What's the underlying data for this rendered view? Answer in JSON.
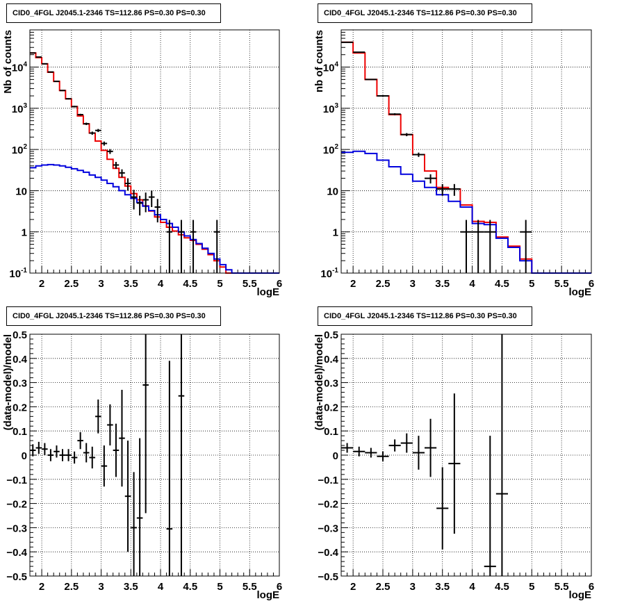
{
  "window": {
    "title": "CID0_4FGL J2045.1-2346 TS=112.86 PS=0.30 PS=0.30"
  },
  "chart_data": [
    {
      "type": "line",
      "title": "CID0_4FGL J2045.1-2346 TS=112.86 PS=0.30 PS=0.30",
      "xlabel": "logE",
      "ylabel": "Nb of counts",
      "xlim": [
        1.8,
        6.0
      ],
      "ylim": [
        0.1,
        80000
      ],
      "yscale": "log",
      "grid": true,
      "xticks": [
        2,
        2.5,
        3,
        3.5,
        4,
        4.5,
        5,
        5.5,
        6
      ],
      "xtick_labels": [
        "2",
        "2.5",
        "3",
        "3.5",
        "4",
        "4.5",
        "5",
        "5.5",
        "6"
      ],
      "yticks": [
        0.1,
        1,
        10,
        100,
        1000,
        10000
      ],
      "ytick_labels": [
        "10^-1",
        "1",
        "10",
        "10^2",
        "10^3",
        "10^4"
      ],
      "bin_edges": [
        1.8,
        1.9,
        2.0,
        2.1,
        2.2,
        2.3,
        2.4,
        2.5,
        2.6,
        2.7,
        2.8,
        2.9,
        3.0,
        3.1,
        3.2,
        3.3,
        3.4,
        3.5,
        3.6,
        3.7,
        3.8,
        3.9,
        4.0,
        4.1,
        4.2,
        4.3,
        4.4,
        4.5,
        4.6,
        4.7,
        4.8,
        4.9,
        5.0,
        5.1,
        5.2,
        5.3,
        5.4,
        5.5,
        5.6,
        5.7,
        5.8,
        5.9,
        6.0
      ],
      "series": [
        {
          "color": "#ee0000",
          "step": true,
          "values": [
            22000,
            17000,
            12000,
            7500,
            4500,
            2700,
            1700,
            1100,
            650,
            420,
            250,
            160,
            95,
            58,
            35,
            21,
            13,
            8.5,
            6.0,
            4.3,
            3.2,
            2.3,
            1.7,
            1.3,
            1.05,
            0.85,
            0.72,
            0.62,
            0.5,
            0.38,
            0.28,
            0.2,
            0.14,
            0.1,
            0.1,
            0.1,
            0.1,
            0.1,
            0.1,
            0.1,
            0.1,
            0.1
          ]
        },
        {
          "color": "#0000dd",
          "step": true,
          "values": [
            36,
            40,
            42,
            43,
            42,
            40,
            37,
            34,
            31,
            28,
            24,
            21,
            18,
            15,
            12.5,
            10,
            8,
            6.5,
            5.2,
            4.2,
            3.3,
            2.6,
            2.0,
            1.6,
            1.3,
            1.0,
            0.8,
            0.65,
            0.52,
            0.4,
            0.3,
            0.22,
            0.16,
            0.12,
            0.1,
            0.1,
            0.1,
            0.1,
            0.1,
            0.1,
            0.1,
            0.1
          ]
        }
      ],
      "points": [
        {
          "x": 1.85,
          "y": 22000,
          "yerr": 300,
          "xerr": 0.05
        },
        {
          "x": 1.95,
          "y": 17500,
          "yerr": 250,
          "xerr": 0.05
        },
        {
          "x": 2.05,
          "y": 12000,
          "yerr": 200,
          "xerr": 0.05
        },
        {
          "x": 2.15,
          "y": 7600,
          "yerr": 150,
          "xerr": 0.05
        },
        {
          "x": 2.25,
          "y": 4500,
          "yerr": 110,
          "xerr": 0.05
        },
        {
          "x": 2.35,
          "y": 2700,
          "yerr": 80,
          "xerr": 0.05
        },
        {
          "x": 2.45,
          "y": 1700,
          "yerr": 60,
          "xerr": 0.05
        },
        {
          "x": 2.55,
          "y": 1100,
          "yerr": 45,
          "xerr": 0.05
        },
        {
          "x": 2.65,
          "y": 700,
          "yerr": 35,
          "xerr": 0.05
        },
        {
          "x": 2.75,
          "y": 420,
          "yerr": 28,
          "xerr": 0.05
        },
        {
          "x": 2.85,
          "y": 250,
          "yerr": 22,
          "xerr": 0.05
        },
        {
          "x": 2.95,
          "y": 290,
          "yerr": 25,
          "xerr": 0.05
        },
        {
          "x": 3.05,
          "y": 140,
          "yerr": 16,
          "xerr": 0.05
        },
        {
          "x": 3.15,
          "y": 90,
          "yerr": 12,
          "xerr": 0.05
        },
        {
          "x": 3.25,
          "y": 42,
          "yerr": 8,
          "xerr": 0.05
        },
        {
          "x": 3.35,
          "y": 27,
          "yerr": 6,
          "xerr": 0.05
        },
        {
          "x": 3.45,
          "y": 15,
          "yerr": 5,
          "xerr": 0.05
        },
        {
          "x": 3.55,
          "y": 7,
          "yerr": 3.5,
          "xerr": 0.05
        },
        {
          "x": 3.65,
          "y": 5,
          "yerr": 2.5,
          "xerr": 0.05
        },
        {
          "x": 3.75,
          "y": 6,
          "yerr": 3,
          "xerr": 0.05
        },
        {
          "x": 3.85,
          "y": 7,
          "yerr": 3,
          "xerr": 0.05
        },
        {
          "x": 3.95,
          "y": 4,
          "yerr": 2.3,
          "xerr": 0.05
        },
        {
          "x": 4.15,
          "y": 1,
          "yerr": 0.95,
          "xerr": 0.05
        },
        {
          "x": 4.35,
          "y": 1,
          "yerr": 0.95,
          "xerr": 0.05
        },
        {
          "x": 4.55,
          "y": 1,
          "yerr": 0.95,
          "xerr": 0.05
        },
        {
          "x": 4.95,
          "y": 1,
          "yerr": 0.95,
          "xerr": 0.05
        }
      ]
    },
    {
      "type": "line",
      "title": "CID0_4FGL J2045.1-2346 TS=112.86 PS=0.30 PS=0.30",
      "xlabel": "logE",
      "ylabel": "nb of counts",
      "xlim": [
        1.8,
        6.0
      ],
      "ylim": [
        0.1,
        80000
      ],
      "yscale": "log",
      "grid": true,
      "xticks": [
        2,
        2.5,
        3,
        3.5,
        4,
        4.5,
        5,
        5.5,
        6
      ],
      "xtick_labels": [
        "2",
        "2.5",
        "3",
        "3.5",
        "4",
        "4.5",
        "5",
        "5.5",
        "6"
      ],
      "yticks": [
        0.1,
        1,
        10,
        100,
        1000,
        10000
      ],
      "ytick_labels": [
        "10^-1",
        "1",
        "10",
        "10^2",
        "10^3",
        "10^4"
      ],
      "bin_edges": [
        1.8,
        2.0,
        2.2,
        2.4,
        2.6,
        2.8,
        3.0,
        3.2,
        3.4,
        3.6,
        3.8,
        4.0,
        4.2,
        4.4,
        4.6,
        4.8,
        5.0,
        5.2,
        5.4,
        5.6,
        5.8,
        6.0
      ],
      "series": [
        {
          "color": "#ee0000",
          "step": true,
          "values": [
            40000,
            22000,
            5000,
            2000,
            700,
            230,
            75,
            30,
            12,
            11,
            4.5,
            1.8,
            1.7,
            0.75,
            0.45,
            0.22,
            0.1,
            0.1,
            0.1,
            0.1,
            0.1
          ]
        },
        {
          "color": "#0000dd",
          "step": true,
          "values": [
            85,
            90,
            80,
            55,
            38,
            25,
            17,
            12,
            8,
            5.5,
            4,
            1.6,
            1.5,
            0.7,
            0.42,
            0.2,
            0.1,
            0.1,
            0.1,
            0.1,
            0.1
          ]
        }
      ],
      "points": [
        {
          "x": 1.9,
          "y": 40000,
          "yerr": 500,
          "xerr": 0.1
        },
        {
          "x": 2.1,
          "y": 23000,
          "yerr": 300,
          "xerr": 0.1
        },
        {
          "x": 2.3,
          "y": 5000,
          "yerr": 120,
          "xerr": 0.1
        },
        {
          "x": 2.5,
          "y": 2000,
          "yerr": 70,
          "xerr": 0.1
        },
        {
          "x": 2.7,
          "y": 720,
          "yerr": 40,
          "xerr": 0.1
        },
        {
          "x": 2.9,
          "y": 230,
          "yerr": 20,
          "xerr": 0.1
        },
        {
          "x": 3.1,
          "y": 75,
          "yerr": 9,
          "xerr": 0.1
        },
        {
          "x": 3.3,
          "y": 20,
          "yerr": 5,
          "xerr": 0.1
        },
        {
          "x": 3.5,
          "y": 11,
          "yerr": 3.5,
          "xerr": 0.1
        },
        {
          "x": 3.7,
          "y": 11,
          "yerr": 3.5,
          "xerr": 0.1
        },
        {
          "x": 3.9,
          "y": 1,
          "yerr": 0.95,
          "xerr": 0.1
        },
        {
          "x": 4.1,
          "y": 1,
          "yerr": 0.95,
          "xerr": 0.1
        },
        {
          "x": 4.3,
          "y": 1,
          "yerr": 0.95,
          "xerr": 0.1
        },
        {
          "x": 4.9,
          "y": 1,
          "yerr": 0.95,
          "xerr": 0.1
        }
      ]
    },
    {
      "type": "scatter",
      "title": "CID0_4FGL J2045.1-2346 TS=112.86 PS=0.30 PS=0.30",
      "xlabel": "logE",
      "ylabel": "(data-model)/model",
      "xlim": [
        1.8,
        6.0
      ],
      "ylim": [
        -0.5,
        0.5
      ],
      "grid": true,
      "xticks": [
        2,
        2.5,
        3,
        3.5,
        4,
        4.5,
        5,
        5.5,
        6
      ],
      "xtick_labels": [
        "2",
        "2.5",
        "3",
        "3.5",
        "4",
        "4.5",
        "5",
        "5.5",
        "6"
      ],
      "yticks": [
        -0.5,
        -0.4,
        -0.3,
        -0.2,
        -0.1,
        0,
        0.1,
        0.2,
        0.3,
        0.4,
        0.5
      ],
      "ytick_labels": [
        "−0.5",
        "−0.4",
        "−0.3",
        "−0.2",
        "−0.1",
        "0",
        "0.1",
        "0.2",
        "0.3",
        "0.4",
        "0.5"
      ],
      "points": [
        {
          "x": 1.85,
          "y": 0.02,
          "yerr": 0.025,
          "xerr": 0.05
        },
        {
          "x": 1.95,
          "y": 0.03,
          "yerr": 0.025,
          "xerr": 0.05
        },
        {
          "x": 2.05,
          "y": 0.025,
          "yerr": 0.025,
          "xerr": 0.05
        },
        {
          "x": 2.15,
          "y": 0.0,
          "yerr": 0.025,
          "xerr": 0.05
        },
        {
          "x": 2.25,
          "y": 0.015,
          "yerr": 0.025,
          "xerr": 0.05
        },
        {
          "x": 2.35,
          "y": 0.0,
          "yerr": 0.025,
          "xerr": 0.05
        },
        {
          "x": 2.45,
          "y": 0.0,
          "yerr": 0.025,
          "xerr": 0.05
        },
        {
          "x": 2.55,
          "y": -0.01,
          "yerr": 0.025,
          "xerr": 0.05
        },
        {
          "x": 2.65,
          "y": 0.06,
          "yerr": 0.035,
          "xerr": 0.05
        },
        {
          "x": 2.75,
          "y": 0.01,
          "yerr": 0.04,
          "xerr": 0.05
        },
        {
          "x": 2.85,
          "y": -0.01,
          "yerr": 0.045,
          "xerr": 0.05
        },
        {
          "x": 2.95,
          "y": 0.16,
          "yerr": 0.07,
          "xerr": 0.05
        },
        {
          "x": 3.05,
          "y": -0.045,
          "yerr": 0.085,
          "xerr": 0.05
        },
        {
          "x": 3.15,
          "y": 0.125,
          "yerr": 0.085,
          "xerr": 0.05
        },
        {
          "x": 3.25,
          "y": 0.02,
          "yerr": 0.11,
          "xerr": 0.05
        },
        {
          "x": 3.35,
          "y": 0.07,
          "yerr": 0.2,
          "xerr": 0.05
        },
        {
          "x": 3.45,
          "y": -0.17,
          "yerr": 0.23,
          "xerr": 0.05
        },
        {
          "x": 3.55,
          "y": -0.3,
          "yerr": 0.23,
          "xerr": 0.05
        },
        {
          "x": 3.65,
          "y": -0.26,
          "yerr": 0.33,
          "xerr": 0.05
        },
        {
          "x": 3.75,
          "y": 0.29,
          "yerr": 0.53,
          "xerr": 0.05
        },
        {
          "x": 4.15,
          "y": -0.305,
          "yerr": 0.695,
          "xerr": 0.05
        },
        {
          "x": 4.35,
          "y": 0.245,
          "yerr": 0.745,
          "xerr": 0.05
        }
      ]
    },
    {
      "type": "scatter",
      "title": "CID0_4FGL J2045.1-2346 TS=112.86 PS=0.30 PS=0.30",
      "xlabel": "logE",
      "ylabel": "(data-model)/model",
      "xlim": [
        1.8,
        6.0
      ],
      "ylim": [
        -0.5,
        0.5
      ],
      "grid": true,
      "xticks": [
        2,
        2.5,
        3,
        3.5,
        4,
        4.5,
        5,
        5.5,
        6
      ],
      "xtick_labels": [
        "2",
        "2.5",
        "3",
        "3.5",
        "4",
        "4.5",
        "5",
        "5.5",
        "6"
      ],
      "yticks": [
        -0.5,
        -0.4,
        -0.3,
        -0.2,
        -0.1,
        0,
        0.1,
        0.2,
        0.3,
        0.4,
        0.5
      ],
      "ytick_labels": [
        "−0.5",
        "−0.4",
        "−0.3",
        "−0.2",
        "−0.1",
        "0",
        "0.1",
        "0.2",
        "0.3",
        "0.4",
        "0.5"
      ],
      "points": [
        {
          "x": 1.9,
          "y": 0.03,
          "yerr": 0.02,
          "xerr": 0.1
        },
        {
          "x": 2.1,
          "y": 0.015,
          "yerr": 0.02,
          "xerr": 0.1
        },
        {
          "x": 2.3,
          "y": 0.01,
          "yerr": 0.02,
          "xerr": 0.1
        },
        {
          "x": 2.5,
          "y": -0.005,
          "yerr": 0.02,
          "xerr": 0.1
        },
        {
          "x": 2.7,
          "y": 0.04,
          "yerr": 0.025,
          "xerr": 0.1
        },
        {
          "x": 2.9,
          "y": 0.05,
          "yerr": 0.04,
          "xerr": 0.1
        },
        {
          "x": 3.1,
          "y": 0.01,
          "yerr": 0.07,
          "xerr": 0.1
        },
        {
          "x": 3.3,
          "y": 0.03,
          "yerr": 0.12,
          "xerr": 0.1
        },
        {
          "x": 3.5,
          "y": -0.22,
          "yerr": 0.17,
          "xerr": 0.1
        },
        {
          "x": 3.7,
          "y": -0.035,
          "yerr": 0.29,
          "xerr": 0.1
        },
        {
          "x": 4.3,
          "y": -0.46,
          "yerr": 0.54,
          "xerr": 0.1
        },
        {
          "x": 4.5,
          "y": -0.16,
          "yerr": 0.84,
          "xerr": 0.1
        }
      ]
    }
  ]
}
